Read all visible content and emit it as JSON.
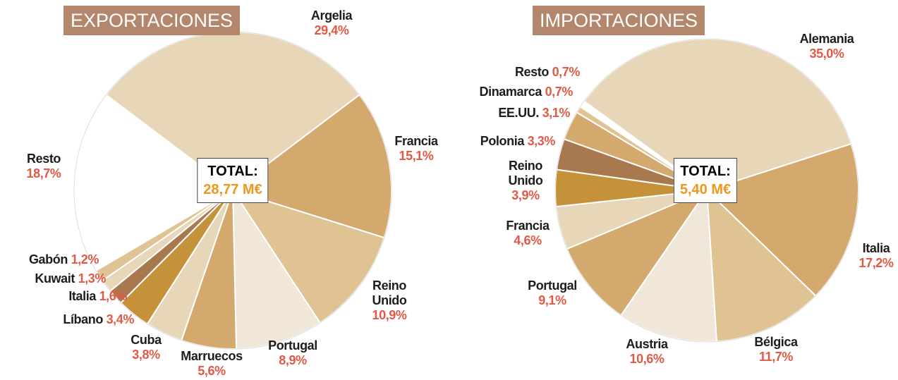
{
  "chart_data": [
    {
      "type": "pie",
      "title": "EXPORTACIONES",
      "total_label": "TOTAL:",
      "total_value": "28,77 M€",
      "categories": [
        "Argelia",
        "Francia",
        "Reino Unido",
        "Portugal",
        "Marruecos",
        "Cuba",
        "Líbano",
        "Italia",
        "Kuwait",
        "Gabón",
        "Resto"
      ],
      "values": [
        29.4,
        15.1,
        10.9,
        8.9,
        5.6,
        3.8,
        3.4,
        1.6,
        1.3,
        1.2,
        18.7
      ],
      "value_labels": [
        "29,4%",
        "15,1%",
        "10,9%",
        "8,9%",
        "5,6%",
        "3,8%",
        "3,4%",
        "1,6%",
        "1,3%",
        "1,2%",
        "18,7%"
      ],
      "colors": [
        "#e8d6b8",
        "#d3a96e",
        "#dfc393",
        "#f1e7d9",
        "#d3a96e",
        "#e8d6b8",
        "#c5923a",
        "#a8794f",
        "#e8d6b8",
        "#dfc393",
        "#ffffff"
      ]
    },
    {
      "type": "pie",
      "title": "IMPORTACIONES",
      "total_label": "TOTAL:",
      "total_value": "5,40 M€",
      "categories": [
        "Alemania",
        "Italia",
        "Bélgica",
        "Austria",
        "Portugal",
        "Francia",
        "Reino Unido",
        "Polonia",
        "EE.UU.",
        "Dinamarca",
        "Resto"
      ],
      "values": [
        35.0,
        17.2,
        11.7,
        10.6,
        9.1,
        4.6,
        3.9,
        3.3,
        3.1,
        0.7,
        0.7
      ],
      "value_labels": [
        "35,0%",
        "17,2%",
        "11,7%",
        "10,6%",
        "9,1%",
        "4,6%",
        "3,9%",
        "3,3%",
        "3,1%",
        "0,7%",
        "0,7%"
      ],
      "colors": [
        "#e8d6b8",
        "#d3a96e",
        "#dfc393",
        "#f1e7d9",
        "#d3a96e",
        "#e8d6b8",
        "#c5923a",
        "#a8794f",
        "#d3a96e",
        "#dfc393",
        "#ffffff"
      ]
    }
  ]
}
